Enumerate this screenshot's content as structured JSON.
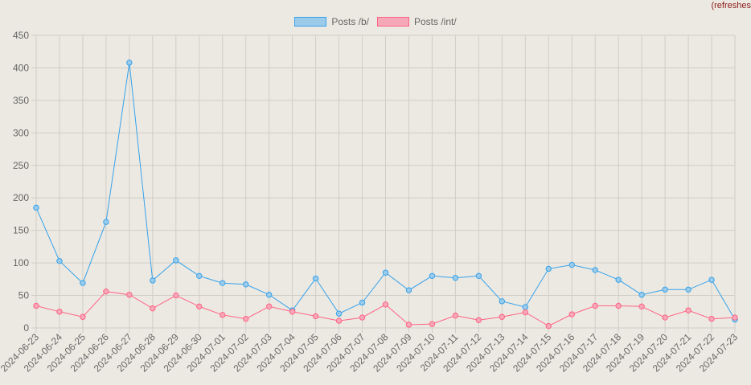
{
  "header": {
    "refresh_label": "(refreshes"
  },
  "colors": {
    "series_b_line": "#36a2eb",
    "series_b_fill": "#9ccbea",
    "series_int_line": "#ff6384",
    "series_int_fill": "#f4a8b8",
    "grid": "#d0cdc6",
    "background": "#ece9e2"
  },
  "chart_data": {
    "type": "line",
    "title": "",
    "xlabel": "",
    "ylabel": "",
    "ylim": [
      0,
      450
    ],
    "yticks": [
      0,
      50,
      100,
      150,
      200,
      250,
      300,
      350,
      400,
      450
    ],
    "grid": true,
    "legend_position": "top",
    "categories": [
      "2024-06-23",
      "2024-06-24",
      "2024-06-25",
      "2024-06-26",
      "2024-06-27",
      "2024-06-28",
      "2024-06-29",
      "2024-06-30",
      "2024-07-01",
      "2024-07-02",
      "2024-07-03",
      "2024-07-04",
      "2024-07-05",
      "2024-07-06",
      "2024-07-07",
      "2024-07-08",
      "2024-07-09",
      "2024-07-10",
      "2024-07-11",
      "2024-07-12",
      "2024-07-13",
      "2024-07-14",
      "2024-07-15",
      "2024-07-16",
      "2024-07-17",
      "2024-07-18",
      "2024-07-19",
      "2024-07-20",
      "2024-07-21",
      "2024-07-22",
      "2024-07-23"
    ],
    "series": [
      {
        "name": "Posts /b/",
        "values": [
          185,
          103,
          69,
          163,
          408,
          73,
          104,
          80,
          69,
          67,
          51,
          27,
          76,
          22,
          39,
          85,
          58,
          80,
          77,
          80,
          41,
          32,
          91,
          97,
          89,
          74,
          51,
          59,
          59,
          74,
          13
        ]
      },
      {
        "name": "Posts /int/",
        "values": [
          34,
          25,
          17,
          56,
          51,
          30,
          50,
          33,
          20,
          14,
          33,
          25,
          18,
          11,
          16,
          36,
          5,
          6,
          19,
          12,
          17,
          24,
          3,
          21,
          34,
          34,
          33,
          16,
          27,
          14,
          16
        ]
      }
    ]
  }
}
